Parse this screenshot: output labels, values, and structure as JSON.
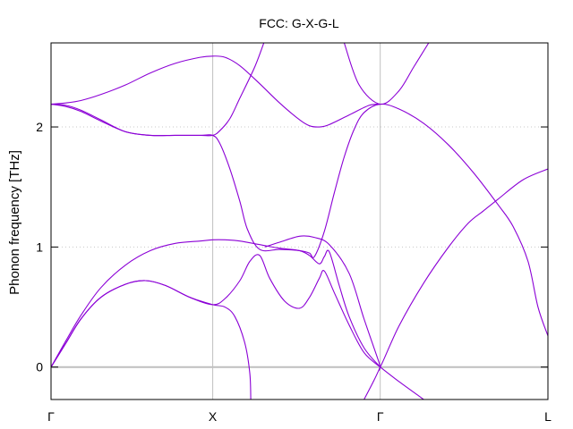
{
  "chart_data": {
    "type": "line",
    "title": "FCC: G-X-G-L",
    "xlabel": "",
    "ylabel": "Phonon frequency [THz]",
    "xlim": [
      0,
      1
    ],
    "ylim": [
      -0.27,
      2.7
    ],
    "y_ticks": [
      0,
      1,
      2
    ],
    "x_ticks": [
      {
        "label": "Γ",
        "x": 0
      },
      {
        "label": "X",
        "x": 0.3254
      },
      {
        "label": "Γ",
        "x": 0.6625
      },
      {
        "label": "L",
        "x": 1
      }
    ],
    "grid": "dotted horizontal at y ticks; solid vertical at high-symmetry points",
    "line_color": "#8b00d6",
    "zero_line_color": "#bfbfbf",
    "vline_color": "#c0c0c0",
    "series": [
      {
        "points": [
          [
            0,
            2.19
          ],
          [
            0.03,
            2.2
          ],
          [
            0.06,
            2.22
          ],
          [
            0.1,
            2.27
          ],
          [
            0.15,
            2.35
          ],
          [
            0.2,
            2.45
          ],
          [
            0.25,
            2.53
          ],
          [
            0.3,
            2.58
          ],
          [
            0.3254,
            2.59
          ],
          [
            0.35,
            2.58
          ],
          [
            0.38,
            2.51
          ],
          [
            0.42,
            2.36
          ],
          [
            0.46,
            2.2
          ],
          [
            0.5,
            2.06
          ],
          [
            0.52,
            2.01
          ],
          [
            0.54,
            2.0
          ],
          [
            0.56,
            2.02
          ],
          [
            0.6,
            2.1
          ],
          [
            0.64,
            2.18
          ],
          [
            0.6625,
            2.19
          ]
        ]
      },
      {
        "points": [
          [
            0,
            2.19
          ],
          [
            0.03,
            2.18
          ],
          [
            0.06,
            2.14
          ],
          [
            0.1,
            2.06
          ],
          [
            0.15,
            1.96
          ],
          [
            0.2,
            1.93
          ],
          [
            0.25,
            1.93
          ],
          [
            0.3,
            1.93
          ],
          [
            0.3254,
            1.93
          ],
          [
            0.34,
            1.97
          ],
          [
            0.36,
            2.07
          ],
          [
            0.38,
            2.24
          ],
          [
            0.41,
            2.5
          ],
          [
            0.43,
            2.72
          ]
        ]
      },
      {
        "points": [
          [
            0,
            2.19
          ],
          [
            0.03,
            2.17
          ],
          [
            0.06,
            2.13
          ],
          [
            0.1,
            2.05
          ],
          [
            0.15,
            1.96
          ],
          [
            0.2,
            1.93
          ],
          [
            0.25,
            1.93
          ],
          [
            0.3,
            1.93
          ],
          [
            0.3254,
            1.93
          ],
          [
            0.34,
            1.86
          ],
          [
            0.36,
            1.65
          ],
          [
            0.38,
            1.38
          ],
          [
            0.395,
            1.15
          ],
          [
            0.42,
            0.98
          ],
          [
            0.46,
            0.98
          ],
          [
            0.5,
            0.97
          ],
          [
            0.52,
            0.95
          ],
          [
            0.53,
            0.92
          ],
          [
            0.55,
            1.13
          ],
          [
            0.57,
            1.45
          ],
          [
            0.59,
            1.75
          ],
          [
            0.61,
            1.98
          ],
          [
            0.63,
            2.12
          ],
          [
            0.6625,
            2.19
          ],
          [
            0.7,
            2.15
          ],
          [
            0.75,
            2.03
          ],
          [
            0.8,
            1.85
          ],
          [
            0.85,
            1.62
          ],
          [
            0.9,
            1.35
          ],
          [
            0.93,
            1.17
          ],
          [
            0.96,
            0.88
          ],
          [
            0.98,
            0.5
          ],
          [
            1,
            0.26
          ]
        ]
      },
      {
        "points": [
          [
            0,
            0
          ],
          [
            0.03,
            0.22
          ],
          [
            0.06,
            0.43
          ],
          [
            0.1,
            0.66
          ],
          [
            0.15,
            0.85
          ],
          [
            0.2,
            0.97
          ],
          [
            0.25,
            1.03
          ],
          [
            0.3,
            1.05
          ],
          [
            0.3254,
            1.06
          ],
          [
            0.35,
            1.06
          ],
          [
            0.38,
            1.05
          ],
          [
            0.42,
            1.02
          ],
          [
            0.46,
            0.99
          ],
          [
            0.5,
            0.97
          ],
          [
            0.52,
            0.93
          ],
          [
            0.54,
            0.86
          ],
          [
            0.55,
            0.92
          ],
          [
            0.56,
            0.96
          ],
          [
            0.58,
            0.68
          ],
          [
            0.6,
            0.42
          ],
          [
            0.63,
            0.16
          ],
          [
            0.6625,
            0
          ]
        ]
      },
      {
        "points": [
          [
            0,
            0
          ],
          [
            0.03,
            0.2
          ],
          [
            0.06,
            0.4
          ],
          [
            0.1,
            0.58
          ],
          [
            0.15,
            0.69
          ],
          [
            0.19,
            0.72
          ],
          [
            0.23,
            0.68
          ],
          [
            0.28,
            0.58
          ],
          [
            0.3254,
            0.52
          ],
          [
            0.35,
            0.57
          ],
          [
            0.38,
            0.72
          ],
          [
            0.4,
            0.88
          ],
          [
            0.42,
            0.93
          ],
          [
            0.44,
            0.74
          ],
          [
            0.47,
            0.55
          ],
          [
            0.5,
            0.49
          ],
          [
            0.52,
            0.58
          ],
          [
            0.54,
            0.74
          ],
          [
            0.55,
            0.8
          ],
          [
            0.57,
            0.62
          ],
          [
            0.6,
            0.35
          ],
          [
            0.63,
            0.12
          ],
          [
            0.6625,
            0
          ]
        ]
      },
      {
        "points": [
          [
            0,
            0
          ],
          [
            0.03,
            0.2
          ],
          [
            0.06,
            0.4
          ],
          [
            0.1,
            0.58
          ],
          [
            0.15,
            0.69
          ],
          [
            0.19,
            0.72
          ],
          [
            0.23,
            0.68
          ],
          [
            0.28,
            0.58
          ],
          [
            0.3254,
            0.52
          ],
          [
            0.35,
            0.5
          ],
          [
            0.37,
            0.42
          ],
          [
            0.39,
            0.2
          ],
          [
            0.4,
            -0.05
          ],
          [
            0.402,
            -0.27
          ]
        ]
      },
      {
        "points": [
          [
            0.43,
            1.0
          ],
          [
            0.46,
            1.04
          ],
          [
            0.5,
            1.09
          ],
          [
            0.53,
            1.08
          ],
          [
            0.56,
            1.02
          ],
          [
            0.6,
            0.78
          ],
          [
            0.63,
            0.4
          ],
          [
            0.66,
            0.04
          ],
          [
            0.6625,
            0
          ],
          [
            0.7,
            0.34
          ],
          [
            0.75,
            0.7
          ],
          [
            0.8,
            1.0
          ],
          [
            0.84,
            1.2
          ],
          [
            0.87,
            1.3
          ],
          [
            0.9,
            1.4
          ],
          [
            0.95,
            1.56
          ],
          [
            1,
            1.65
          ]
        ]
      },
      {
        "points": [
          [
            0.6625,
            0
          ],
          [
            0.7,
            -0.12
          ],
          [
            0.74,
            -0.24
          ],
          [
            0.75,
            -0.27
          ]
        ]
      },
      {
        "points": [
          [
            0.6625,
            0
          ],
          [
            0.65,
            -0.11
          ],
          [
            0.63,
            -0.27
          ]
        ]
      },
      {
        "points": [
          [
            0.59,
            2.7
          ],
          [
            0.62,
            2.35
          ],
          [
            0.6625,
            2.19
          ],
          [
            0.7,
            2.3
          ],
          [
            0.73,
            2.5
          ],
          [
            0.76,
            2.7
          ]
        ]
      }
    ]
  }
}
